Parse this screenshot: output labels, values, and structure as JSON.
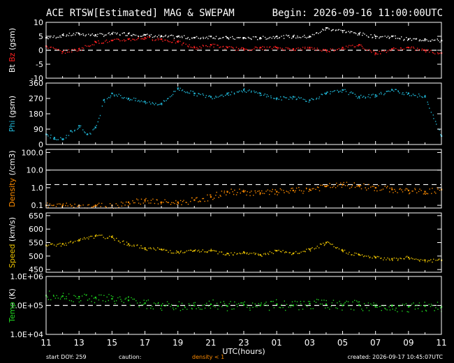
{
  "header": {
    "title": "ACE RTSW[Estimated] MAG & SWEPAM",
    "begin": "Begin: 2026-09-16 11:00:00UTC"
  },
  "footer": {
    "start_doy": "start DOY: 259",
    "caution": "caution:",
    "density_note": "density < 1",
    "created": "created: 2026-09-17 10:45:07UTC"
  },
  "colors": {
    "background": "#000000",
    "frame": "#ffffff",
    "bt": "#ffffff",
    "bz": "#ff2020",
    "phi": "#20b8d8",
    "density": "#ff8c00",
    "speed": "#e8c000",
    "temp": "#20d820"
  },
  "chart_data": [
    {
      "type": "scatter",
      "panel": "mag-bt-bz",
      "ylabel_parts": [
        {
          "text": "Bt",
          "color": "#ffffff"
        },
        {
          "text": "Bz",
          "color": "#ff2020"
        },
        {
          "text": "(gsm)",
          "color": "#ffffff"
        }
      ],
      "ylim": [
        -10,
        10
      ],
      "yticks": [
        "10",
        "5",
        "0",
        "-5",
        "-10"
      ],
      "ytick_values": [
        10,
        5,
        0,
        -5,
        -10
      ],
      "dashed_ref": 0,
      "series": [
        {
          "name": "Bt",
          "color": "#ffffff",
          "x": [
            0,
            1,
            2,
            3,
            4,
            5,
            6,
            7,
            8,
            9,
            10,
            11,
            12,
            13,
            14,
            15,
            16,
            17,
            18,
            19,
            20,
            21,
            22,
            23,
            24
          ],
          "y": [
            4.5,
            5.5,
            6,
            5.5,
            6,
            6,
            5.5,
            5,
            5,
            4.5,
            5,
            4.5,
            4.5,
            4.5,
            5,
            5,
            5,
            8,
            7,
            6,
            5,
            5,
            4,
            4,
            3.5
          ]
        },
        {
          "name": "Bz",
          "color": "#ff2020",
          "x": [
            0,
            1,
            2,
            3,
            4,
            5,
            6,
            7,
            8,
            9,
            10,
            11,
            12,
            13,
            14,
            15,
            16,
            17,
            18,
            19,
            20,
            21,
            22,
            23,
            24
          ],
          "y": [
            1.5,
            -0.5,
            0.5,
            3,
            3.5,
            4,
            4.5,
            4,
            3,
            1,
            2,
            1,
            0.5,
            1,
            1,
            0.5,
            1,
            0,
            1,
            2,
            -1,
            0.5,
            1,
            0,
            -1
          ]
        }
      ]
    },
    {
      "type": "scatter",
      "panel": "phi",
      "ylabel_parts": [
        {
          "text": "Phi",
          "color": "#20b8d8"
        },
        {
          "text": "(gsm)",
          "color": "#ffffff"
        }
      ],
      "ylim": [
        0,
        360
      ],
      "yticks": [
        "360",
        "270",
        "180",
        "90",
        "0"
      ],
      "ytick_values": [
        360,
        270,
        180,
        90,
        0
      ],
      "series": [
        {
          "name": "Phi",
          "color": "#20b8d8",
          "x": [
            0,
            0.5,
            1,
            1.5,
            2,
            2.5,
            3,
            3.5,
            4,
            5,
            6,
            7,
            8,
            9,
            10,
            11,
            12,
            13,
            14,
            15,
            16,
            17,
            18,
            19,
            20,
            21,
            22,
            23,
            24
          ],
          "y": [
            60,
            40,
            30,
            80,
            110,
            60,
            100,
            260,
            300,
            270,
            250,
            240,
            330,
            300,
            280,
            300,
            320,
            300,
            270,
            280,
            260,
            300,
            320,
            280,
            290,
            320,
            300,
            280,
            50
          ]
        }
      ]
    },
    {
      "type": "scatter",
      "panel": "density",
      "ylabel_parts": [
        {
          "text": "Density",
          "color": "#ff8c00"
        },
        {
          "text": "(/cm3)",
          "color": "#ffffff"
        }
      ],
      "scale": "log",
      "ylim": [
        0.07,
        150
      ],
      "yticks": [
        "100.0",
        "10.0",
        "1.0",
        "0.1"
      ],
      "ytick_values": [
        100,
        10,
        1,
        0.1
      ],
      "solid_ref": 10,
      "dashed_ref": 1.5,
      "series": [
        {
          "name": "Density",
          "color": "#ff8c00",
          "x": [
            0,
            1,
            2,
            3,
            4,
            5,
            6,
            7,
            8,
            9,
            10,
            11,
            12,
            13,
            14,
            15,
            16,
            17,
            18,
            19,
            20,
            21,
            22,
            23,
            24
          ],
          "y": [
            0.1,
            0.1,
            0.1,
            0.1,
            0.1,
            0.15,
            0.2,
            0.15,
            0.15,
            0.2,
            0.3,
            0.6,
            0.6,
            0.5,
            0.6,
            0.7,
            0.8,
            1.2,
            1.5,
            1.3,
            1.0,
            0.8,
            0.7,
            0.6,
            0.8
          ]
        }
      ]
    },
    {
      "type": "scatter",
      "panel": "speed",
      "ylabel_parts": [
        {
          "text": "Speed",
          "color": "#e8c000"
        },
        {
          "text": "(km/s)",
          "color": "#ffffff"
        }
      ],
      "ylim": [
        440,
        660
      ],
      "yticks": [
        "650",
        "600",
        "550",
        "500",
        "450"
      ],
      "ytick_values": [
        650,
        600,
        550,
        500,
        450
      ],
      "series": [
        {
          "name": "Speed",
          "color": "#e8c000",
          "x": [
            0,
            1,
            2,
            3,
            4,
            5,
            6,
            7,
            8,
            9,
            10,
            11,
            12,
            13,
            14,
            15,
            16,
            17,
            18,
            19,
            20,
            21,
            22,
            23,
            24
          ],
          "y": [
            540,
            545,
            560,
            575,
            570,
            545,
            530,
            525,
            515,
            520,
            520,
            510,
            515,
            505,
            520,
            510,
            525,
            550,
            520,
            505,
            495,
            490,
            495,
            485,
            485
          ]
        }
      ]
    },
    {
      "type": "scatter",
      "panel": "temp",
      "ylabel_parts": [
        {
          "text": "Temp",
          "color": "#20d820"
        },
        {
          "text": "(K)",
          "color": "#ffffff"
        }
      ],
      "scale": "log",
      "ylim": [
        10000,
        1000000
      ],
      "yticks": [
        "1.0E+06",
        "1.0E+05",
        "1.0E+04"
      ],
      "ytick_values": [
        1000000,
        100000,
        10000
      ],
      "dashed_ref": 100000,
      "series": [
        {
          "name": "Temp",
          "color": "#20d820",
          "x": [
            0,
            1,
            2,
            3,
            4,
            5,
            6,
            7,
            8,
            9,
            10,
            11,
            12,
            13,
            14,
            15,
            16,
            17,
            18,
            19,
            20,
            21,
            22,
            23,
            24
          ],
          "y": [
            220000,
            210000,
            200000,
            190000,
            170000,
            150000,
            120000,
            100000,
            95000,
            100000,
            110000,
            95000,
            105000,
            100000,
            110000,
            100000,
            115000,
            110000,
            100000,
            105000,
            90000,
            95000,
            90000,
            95000,
            90000
          ]
        }
      ]
    }
  ],
  "x_axis": {
    "label": "UTC(hours)",
    "range": [
      0,
      24
    ],
    "ticks": [
      "11",
      "13",
      "15",
      "17",
      "19",
      "21",
      "23",
      "01",
      "03",
      "05",
      "07",
      "09",
      "11"
    ],
    "tick_values": [
      0,
      2,
      4,
      6,
      8,
      10,
      12,
      14,
      16,
      18,
      20,
      22,
      24
    ]
  }
}
